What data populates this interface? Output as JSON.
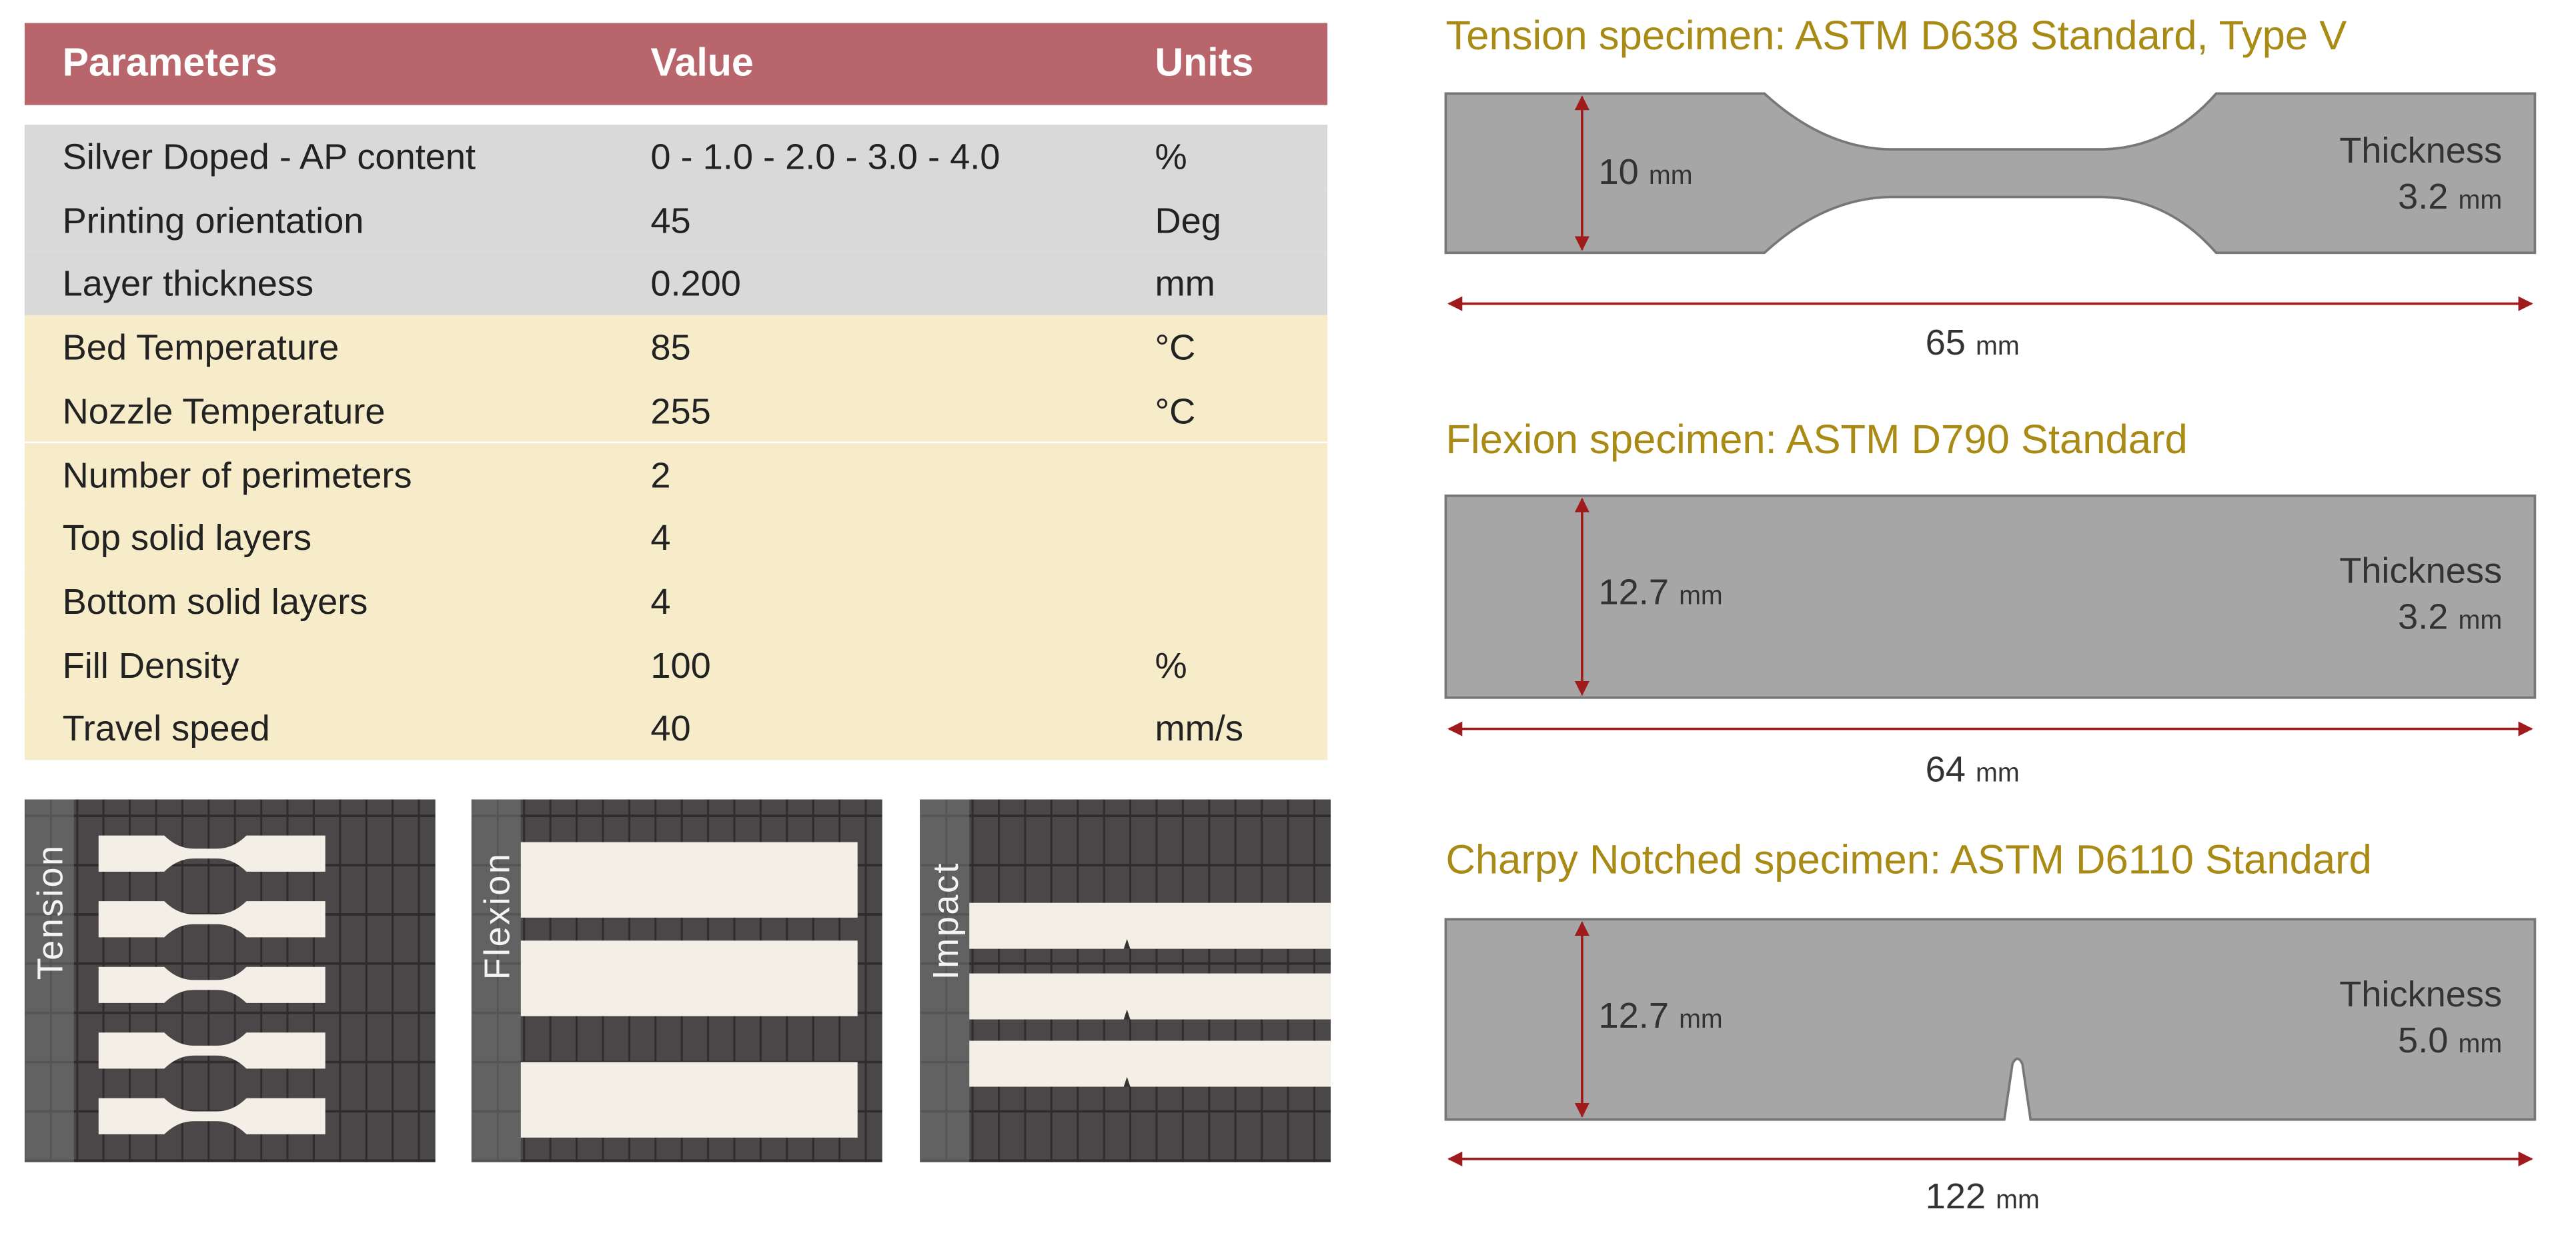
{
  "table": {
    "headers": [
      "Parameters",
      "Value",
      "Units"
    ],
    "rows": [
      {
        "param": "Silver Doped - AP content",
        "value": "0 - 1.0 - 2.0 - 3.0 - 4.0",
        "unit": "%",
        "group": "gray"
      },
      {
        "param": "Printing orientation",
        "value": "45",
        "unit": "Deg",
        "group": "gray"
      },
      {
        "param": "Layer thickness",
        "value": "0.200",
        "unit": "mm",
        "group": "gray"
      },
      {
        "param": "Bed Temperature",
        "value": "85",
        "unit": "°C",
        "group": "yellow"
      },
      {
        "param": "Nozzle Temperature",
        "value": "255",
        "unit": "°C",
        "group": "yellow"
      },
      {
        "param": "Number of perimeters",
        "value": "2",
        "unit": "",
        "group": "yellow"
      },
      {
        "param": "Top solid layers",
        "value": "4",
        "unit": "",
        "group": "yellow"
      },
      {
        "param": "Bottom solid layers",
        "value": "4",
        "unit": "",
        "group": "yellow"
      },
      {
        "param": "Fill Density",
        "value": "100",
        "unit": "%",
        "group": "yellow"
      },
      {
        "param": "Travel speed",
        "value": "40",
        "unit": "mm/s",
        "group": "yellow"
      }
    ],
    "colors": {
      "header": "#b8666c",
      "gray": "#d9d9d9",
      "yellow": "#f6ecca"
    }
  },
  "photos": [
    {
      "label": "Tension"
    },
    {
      "label": "Flexion"
    },
    {
      "label": "Impact"
    }
  ],
  "specimens": [
    {
      "title": "Tension specimen: ASTM D638 Standard, Type V",
      "height_value": "10",
      "length_value": "65",
      "thickness_label": "Thickness",
      "thickness_value": "3.2",
      "unit": "mm"
    },
    {
      "title": "Flexion specimen: ASTM D790 Standard",
      "height_value": "12.7",
      "length_value": "64",
      "thickness_label": "Thickness",
      "thickness_value": "3.2",
      "unit": "mm"
    },
    {
      "title": "Charpy Notched specimen: ASTM D6110 Standard",
      "height_value": "12.7",
      "length_value": "122",
      "thickness_label": "Thickness",
      "thickness_value": "5.0",
      "unit": "mm"
    }
  ],
  "colors": {
    "title": "#a88a14",
    "specimen": "#a6a6a6",
    "arrow": "#a01c1c"
  }
}
